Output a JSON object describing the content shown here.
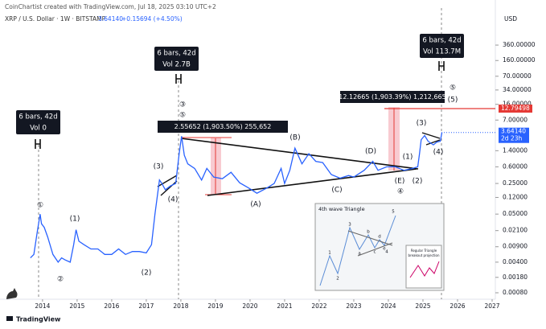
{
  "chart_data": {
    "type": "line",
    "credit": "CoinChartist created with TradingView.com, Jul 18, 2025 03:10 UTC+2",
    "symbol": "XRP / U.S. Dollar · 1W · BITSTAMP",
    "last": "3.64140",
    "change": "+0.15694 (+4.50%)",
    "currency": "USD",
    "footer": "TradingView",
    "color": "#2962ff",
    "log_scale": true,
    "grid": false,
    "x": [
      2013.65,
      2013.75,
      2013.85,
      2013.93,
      2013.97,
      2014.05,
      2014.15,
      2014.3,
      2014.45,
      2014.55,
      2014.65,
      2014.8,
      2014.9,
      2014.97,
      2015.05,
      2015.2,
      2015.4,
      2015.6,
      2015.8,
      2016.0,
      2016.2,
      2016.4,
      2016.6,
      2016.8,
      2017.0,
      2017.15,
      2017.25,
      2017.38,
      2017.45,
      2017.55,
      2017.7,
      2017.85,
      2017.95,
      2018.02,
      2018.1,
      2018.2,
      2018.4,
      2018.6,
      2018.75,
      2018.95,
      2019.2,
      2019.45,
      2019.7,
      2019.95,
      2020.2,
      2020.5,
      2020.7,
      2020.9,
      2021.0,
      2021.15,
      2021.3,
      2021.5,
      2021.7,
      2021.9,
      2022.1,
      2022.35,
      2022.6,
      2022.85,
      2023.0,
      2023.3,
      2023.55,
      2023.7,
      2023.95,
      2024.2,
      2024.45,
      2024.7,
      2024.85,
      2024.9,
      2024.95,
      2025.05,
      2025.15,
      2025.3,
      2025.4,
      2025.5,
      2025.55
    ],
    "values": [
      0.005,
      0.006,
      0.02,
      0.05,
      0.03,
      0.025,
      0.015,
      0.006,
      0.004,
      0.005,
      0.0045,
      0.004,
      0.01,
      0.022,
      0.012,
      0.01,
      0.008,
      0.008,
      0.006,
      0.006,
      0.008,
      0.006,
      0.007,
      0.007,
      0.0065,
      0.01,
      0.05,
      0.3,
      0.25,
      0.18,
      0.22,
      0.25,
      1.2,
      3.0,
      1.1,
      0.7,
      0.55,
      0.3,
      0.55,
      0.35,
      0.32,
      0.45,
      0.26,
      0.2,
      0.15,
      0.2,
      0.25,
      0.55,
      0.25,
      0.5,
      1.6,
      0.7,
      1.2,
      0.8,
      0.75,
      0.4,
      0.33,
      0.38,
      0.35,
      0.5,
      0.8,
      0.5,
      0.6,
      0.6,
      0.5,
      0.55,
      0.6,
      1.2,
      2.5,
      3.1,
      2.3,
      1.9,
      2.2,
      2.3,
      3.6414
    ],
    "xlim": [
      2012.77,
      2027.07
    ],
    "xticks": [
      2014,
      2015,
      2016,
      2017,
      2018,
      2019,
      2020,
      2021,
      2022,
      2023,
      2024,
      2025,
      2026,
      2027
    ],
    "ylim": [
      0.00057,
      2744
    ],
    "yticks": [
      {
        "value": 360,
        "label": "360.00000"
      },
      {
        "value": 160,
        "label": "160.00000"
      },
      {
        "value": 70,
        "label": "70.00000"
      },
      {
        "value": 34,
        "label": "34.00000"
      },
      {
        "value": 16,
        "label": "16.00000"
      },
      {
        "value": 7,
        "label": "7.00000"
      },
      {
        "value": 1.4,
        "label": "1.40000"
      },
      {
        "value": 0.6,
        "label": "0.60000"
      },
      {
        "value": 0.25,
        "label": "0.25000"
      },
      {
        "value": 0.12,
        "label": "0.12000"
      },
      {
        "value": 0.05,
        "label": "0.05000"
      },
      {
        "value": 0.021,
        "label": "0.02100"
      },
      {
        "value": 0.009,
        "label": "0.00900"
      },
      {
        "value": 0.004,
        "label": "0.00400"
      },
      {
        "value": 0.0018,
        "label": "0.00180"
      },
      {
        "value": 0.0008,
        "label": "0.00080"
      }
    ],
    "price_line": {
      "value": 12.79498,
      "label": "12.79498"
    },
    "last_price": {
      "value": 3.6414,
      "label": "3.64140",
      "countdown": "2d 23h"
    },
    "info_boxes": [
      [
        "6 bars, 42d",
        "Vol 0"
      ],
      [
        "6 bars, 42d",
        "Vol 2.7B"
      ],
      [
        "6 bars, 42d",
        "Vol 113.7M"
      ]
    ],
    "measurements": [
      "2.55652 (1,903.50%) 255,652",
      "12.12665 (1,903.39%) 1,212,665"
    ],
    "waves": [
      "①",
      "②",
      "(1)",
      "(2)",
      "(3)",
      "(4)",
      "③",
      "⑤",
      "(A)",
      "(B)",
      "(C)",
      "(D)",
      "(E)",
      "④",
      "(1)",
      "(2)",
      "(3)",
      "(4)",
      "⑤",
      "(5)"
    ],
    "inset": {
      "title": "4th wave Triangle",
      "labels": [
        "1",
        "2",
        "3",
        "4",
        "5",
        "a",
        "b",
        "c",
        "d",
        "e"
      ],
      "sub": [
        "Regular Triangle",
        "breakout projection"
      ]
    }
  }
}
